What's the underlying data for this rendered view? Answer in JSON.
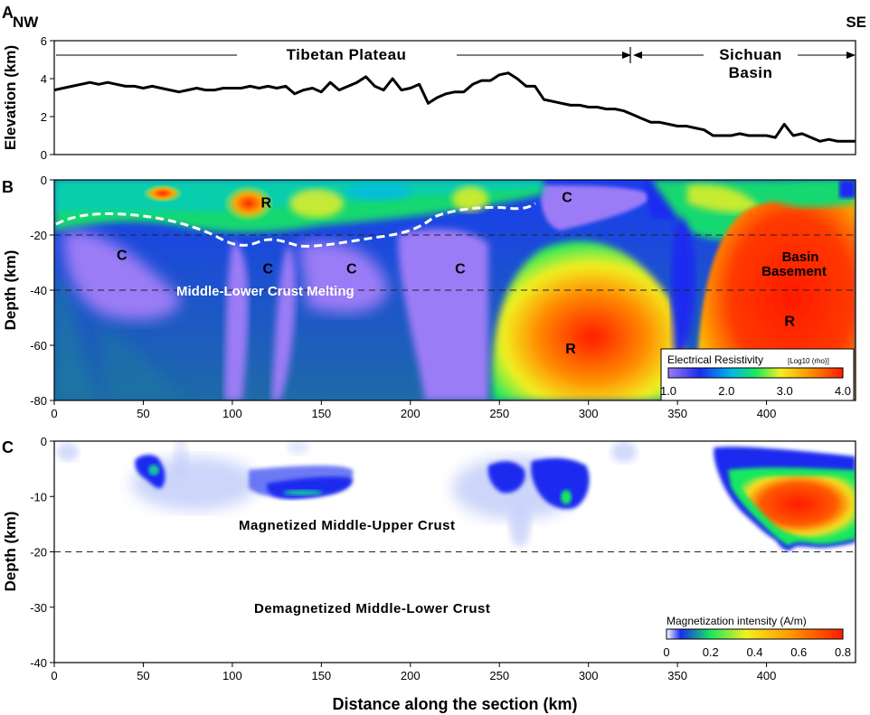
{
  "chart_data": [
    {
      "panel": "A",
      "type": "line",
      "corner_left": "NW",
      "corner_right": "SE",
      "ylabel": "Elevation (km)",
      "ylim": [
        0,
        6
      ],
      "yticks": [
        0,
        2,
        4,
        6
      ],
      "xlim": [
        0,
        450
      ],
      "region_left": "Tibetan Plateau",
      "region_right_line1": "Sichuan",
      "region_right_line2": "Basin",
      "boundary_x": 322,
      "series": [
        {
          "x": [
            0,
            5,
            10,
            15,
            20,
            25,
            30,
            35,
            40,
            45,
            50,
            55,
            60,
            65,
            70,
            75,
            80,
            85,
            90,
            95,
            100,
            105,
            110,
            115,
            120,
            125,
            130,
            135,
            140,
            145,
            150,
            155,
            160,
            165,
            170,
            175,
            180,
            185,
            190,
            195,
            200,
            205,
            210,
            215,
            220,
            225,
            230,
            235,
            240,
            245,
            250,
            255,
            260,
            265,
            270,
            275,
            280,
            285,
            290,
            295,
            300,
            305,
            310,
            315,
            320,
            325,
            330,
            335,
            340,
            345,
            350,
            355,
            360,
            365,
            370,
            375,
            380,
            385,
            390,
            395,
            400,
            405,
            410,
            415,
            420,
            425,
            430,
            435,
            440,
            445,
            450
          ],
          "y": [
            3.4,
            3.5,
            3.6,
            3.7,
            3.8,
            3.7,
            3.8,
            3.7,
            3.6,
            3.6,
            3.5,
            3.6,
            3.5,
            3.4,
            3.3,
            3.4,
            3.5,
            3.4,
            3.4,
            3.5,
            3.5,
            3.5,
            3.6,
            3.5,
            3.6,
            3.5,
            3.6,
            3.2,
            3.4,
            3.5,
            3.3,
            3.8,
            3.4,
            3.6,
            3.8,
            4.1,
            3.6,
            3.4,
            4.0,
            3.4,
            3.5,
            3.7,
            2.7,
            3.0,
            3.2,
            3.3,
            3.3,
            3.7,
            3.9,
            3.9,
            4.2,
            4.3,
            4.0,
            3.6,
            3.6,
            2.9,
            2.8,
            2.7,
            2.6,
            2.6,
            2.5,
            2.5,
            2.4,
            2.4,
            2.3,
            2.1,
            1.9,
            1.7,
            1.7,
            1.6,
            1.5,
            1.5,
            1.4,
            1.3,
            1.0,
            1.0,
            1.0,
            1.1,
            1.0,
            1.0,
            1.0,
            0.9,
            1.6,
            1.0,
            1.1,
            0.9,
            0.7,
            0.8,
            0.7,
            0.7,
            0.7
          ]
        }
      ]
    },
    {
      "panel": "B",
      "type": "heatmap",
      "ylabel": "Depth (km)",
      "ylim": [
        -80,
        0
      ],
      "yticks": [
        0,
        -20,
        -40,
        -60,
        -80
      ],
      "xlim": [
        0,
        450
      ],
      "xticks": [
        0,
        50,
        100,
        150,
        200,
        250,
        300,
        350,
        400
      ],
      "dashed_depths": [
        -20,
        -40
      ],
      "moho_line_label": "Middle-Lower Crust Melting",
      "annotations": [
        {
          "text": "R",
          "x": 119,
          "y": -8
        },
        {
          "text": "C",
          "x": 288,
          "y": -6
        },
        {
          "text": "C",
          "x": 38,
          "y": -27
        },
        {
          "text": "C",
          "x": 120,
          "y": -32
        },
        {
          "text": "C",
          "x": 167,
          "y": -32
        },
        {
          "text": "C",
          "x": 228,
          "y": -32
        },
        {
          "text": "R",
          "x": 413,
          "y": -51
        },
        {
          "text": "R",
          "x": 290,
          "y": -61
        }
      ],
      "basin_label_line1": "Basin",
      "basin_label_line2": "Basement",
      "colorbar": {
        "title": "Electrical Resistivity",
        "unit": "[Log10 (rho)]",
        "range": [
          1.0,
          4.0
        ],
        "ticks": [
          "1.0",
          "2.0",
          "3.0",
          "4.0"
        ]
      }
    },
    {
      "panel": "C",
      "type": "heatmap",
      "ylabel": "Depth (km)",
      "ylim": [
        -40,
        0
      ],
      "yticks": [
        0,
        -10,
        -20,
        -30,
        -40
      ],
      "xlim": [
        0,
        450
      ],
      "xticks": [
        0,
        50,
        100,
        150,
        200,
        250,
        300,
        350,
        400
      ],
      "xlabel": "Distance along the section (km)",
      "dashed_depths": [
        -20
      ],
      "label_upper": "Magnetized Middle-Upper Crust",
      "label_lower": "Demagnetized Middle-Lower Crust",
      "colorbar": {
        "title": "Magnetization intensity (A/m)",
        "range": [
          0,
          0.8
        ],
        "ticks": [
          "0",
          "0.2",
          "0.4",
          "0.6",
          "0.8"
        ]
      }
    }
  ],
  "panel_letters": [
    "A",
    "B",
    "C"
  ],
  "colors": {
    "resistivity_scale": [
      "#8b6cf2",
      "#1a2cf0",
      "#00b8e8",
      "#18e860",
      "#f2f020",
      "#ff9a00",
      "#ff1a00"
    ],
    "magnetization_scale": [
      "#ffffff",
      "#1a2cf0",
      "#18e860",
      "#f2f020",
      "#ff9a00",
      "#ff1a00"
    ]
  }
}
